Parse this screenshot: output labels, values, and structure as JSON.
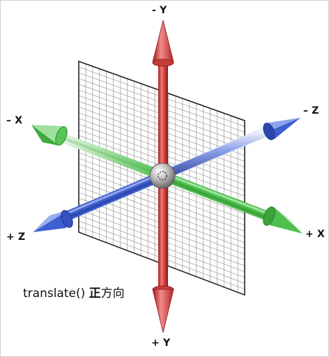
{
  "axes": {
    "neg_y": "- Y",
    "pos_y": "+ Y",
    "neg_x": "– X",
    "pos_x": "+ X",
    "neg_z": "– Z",
    "pos_z": "+ Z"
  },
  "caption": {
    "method": "translate()",
    "emphasis": "正",
    "rest": "方向"
  },
  "colors": {
    "y_axis": "#e24c4c",
    "x_axis": "#4fbf4f",
    "z_axis": "#3f5fd0",
    "plane_grid": "#9a9a9a",
    "plane_border": "#222222",
    "origin_sphere": "#9c9c9c"
  },
  "icons": {
    "origin": "origin-sphere-icon"
  }
}
